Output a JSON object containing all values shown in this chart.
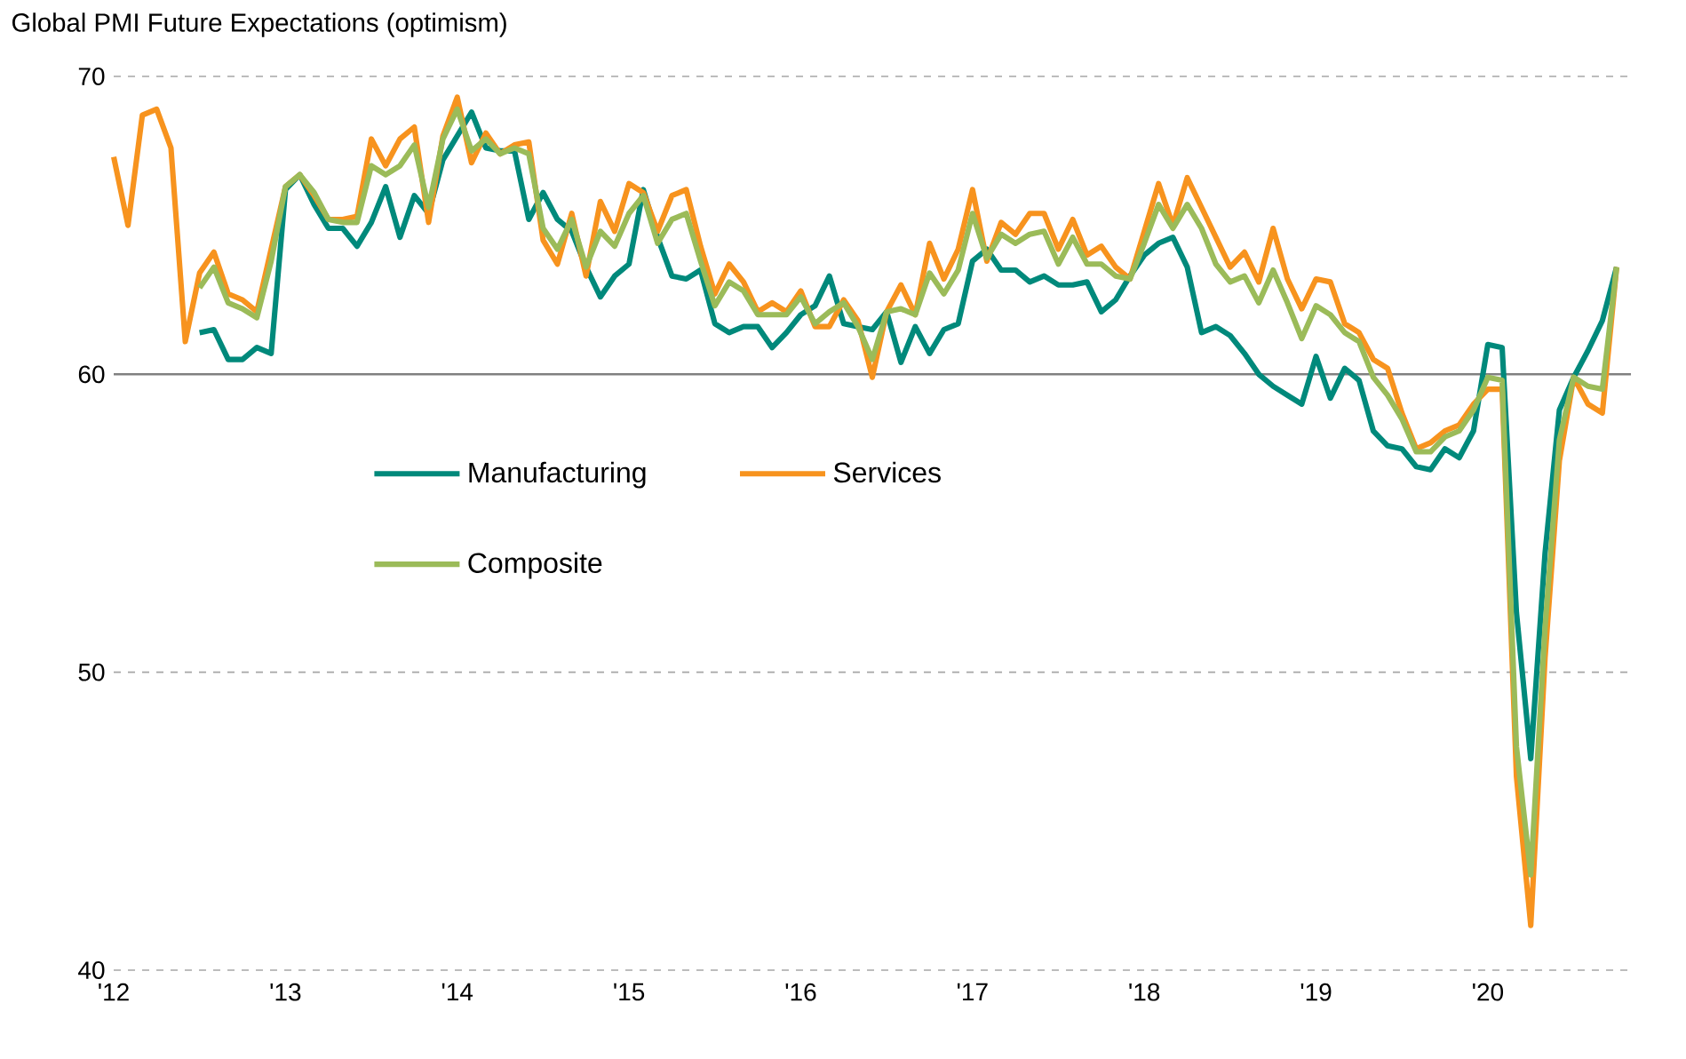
{
  "chart_data": {
    "type": "line",
    "title": "Global PMI Future Expectations (optimism)",
    "x": [
      "2012-01",
      "2012-02",
      "2012-03",
      "2012-04",
      "2012-05",
      "2012-06",
      "2012-07",
      "2012-08",
      "2012-09",
      "2012-10",
      "2012-11",
      "2012-12",
      "2013-01",
      "2013-02",
      "2013-03",
      "2013-04",
      "2013-05",
      "2013-06",
      "2013-07",
      "2013-08",
      "2013-09",
      "2013-10",
      "2013-11",
      "2013-12",
      "2014-01",
      "2014-02",
      "2014-03",
      "2014-04",
      "2014-05",
      "2014-06",
      "2014-07",
      "2014-08",
      "2014-09",
      "2014-10",
      "2014-11",
      "2014-12",
      "2015-01",
      "2015-02",
      "2015-03",
      "2015-04",
      "2015-05",
      "2015-06",
      "2015-07",
      "2015-08",
      "2015-09",
      "2015-10",
      "2015-11",
      "2015-12",
      "2016-01",
      "2016-02",
      "2016-03",
      "2016-04",
      "2016-05",
      "2016-06",
      "2016-07",
      "2016-08",
      "2016-09",
      "2016-10",
      "2016-11",
      "2016-12",
      "2017-01",
      "2017-02",
      "2017-03",
      "2017-04",
      "2017-05",
      "2017-06",
      "2017-07",
      "2017-08",
      "2017-09",
      "2017-10",
      "2017-11",
      "2017-12",
      "2018-01",
      "2018-02",
      "2018-03",
      "2018-04",
      "2018-05",
      "2018-06",
      "2018-07",
      "2018-08",
      "2018-09",
      "2018-10",
      "2018-11",
      "2018-12",
      "2019-01",
      "2019-02",
      "2019-03",
      "2019-04",
      "2019-05",
      "2019-06",
      "2019-07",
      "2019-08",
      "2019-09",
      "2019-10",
      "2019-11",
      "2019-12",
      "2020-01",
      "2020-02",
      "2020-03",
      "2020-04",
      "2020-05",
      "2020-06",
      "2020-07",
      "2020-08",
      "2020-09",
      "2020-10"
    ],
    "series": [
      {
        "name": "Manufacturing",
        "color": "#00897b",
        "values": [
          null,
          null,
          null,
          null,
          null,
          null,
          61.4,
          61.5,
          60.5,
          60.5,
          60.9,
          60.7,
          66.2,
          66.7,
          65.7,
          64.9,
          64.9,
          64.3,
          65.1,
          66.3,
          64.6,
          66.0,
          65.4,
          67.2,
          68.0,
          68.8,
          67.6,
          67.5,
          67.5,
          65.2,
          66.1,
          65.2,
          64.8,
          63.6,
          62.6,
          63.3,
          63.7,
          66.2,
          64.6,
          63.3,
          63.2,
          63.5,
          61.7,
          61.4,
          61.6,
          61.6,
          60.9,
          61.4,
          62.0,
          62.3,
          63.3,
          61.7,
          61.6,
          61.5,
          62.1,
          60.4,
          61.6,
          60.7,
          61.5,
          61.7,
          63.8,
          64.2,
          63.5,
          63.5,
          63.1,
          63.3,
          63.0,
          63.0,
          63.1,
          62.1,
          62.5,
          63.3,
          64.0,
          64.4,
          64.6,
          63.6,
          61.4,
          61.6,
          61.3,
          60.7,
          60.0,
          59.6,
          59.3,
          59.0,
          60.6,
          59.2,
          60.2,
          59.8,
          58.1,
          57.6,
          57.5,
          56.9,
          56.8,
          57.5,
          57.2,
          58.1,
          61.0,
          60.9,
          52.0,
          47.1,
          54.0,
          58.8,
          59.9,
          60.8,
          61.8,
          63.6
        ]
      },
      {
        "name": "Services",
        "color": "#f7931e",
        "values": [
          67.3,
          65.0,
          68.7,
          68.9,
          67.6,
          61.1,
          63.4,
          64.1,
          62.7,
          62.5,
          62.1,
          64.2,
          66.3,
          66.7,
          66.0,
          65.2,
          65.2,
          65.3,
          67.9,
          67.0,
          67.9,
          68.3,
          65.1,
          68.0,
          69.3,
          67.1,
          68.1,
          67.4,
          67.7,
          67.8,
          64.5,
          63.7,
          65.4,
          63.3,
          65.8,
          64.8,
          66.4,
          66.1,
          64.8,
          66.0,
          66.2,
          64.3,
          62.7,
          63.7,
          63.1,
          62.1,
          62.4,
          62.1,
          62.8,
          61.6,
          61.6,
          62.5,
          61.8,
          59.9,
          62.1,
          63.0,
          62.0,
          64.4,
          63.2,
          64.2,
          66.2,
          63.8,
          65.1,
          64.7,
          65.4,
          65.4,
          64.2,
          65.2,
          64.0,
          64.3,
          63.6,
          63.2,
          64.8,
          66.4,
          65.0,
          66.6,
          65.6,
          64.6,
          63.6,
          64.1,
          63.1,
          64.9,
          63.2,
          62.2,
          63.2,
          63.1,
          61.7,
          61.4,
          60.5,
          60.2,
          58.7,
          57.5,
          57.7,
          58.1,
          58.3,
          59.0,
          59.5,
          59.5,
          46.5,
          41.5,
          50.5,
          57.1,
          59.9,
          59.0,
          58.7,
          63.6
        ]
      },
      {
        "name": "Composite",
        "color": "#9bbb59",
        "values": [
          null,
          null,
          null,
          null,
          null,
          null,
          62.9,
          63.6,
          62.4,
          62.2,
          61.9,
          63.8,
          66.3,
          66.7,
          66.1,
          65.2,
          65.1,
          65.1,
          67.0,
          66.7,
          67.0,
          67.7,
          65.6,
          67.9,
          68.9,
          67.5,
          67.9,
          67.4,
          67.6,
          67.4,
          64.9,
          64.2,
          65.2,
          63.6,
          64.8,
          64.3,
          65.4,
          66.0,
          64.4,
          65.2,
          65.4,
          63.8,
          62.3,
          63.1,
          62.8,
          62.0,
          62.0,
          62.0,
          62.6,
          61.7,
          62.1,
          62.4,
          61.6,
          60.5,
          62.1,
          62.2,
          62.0,
          63.4,
          62.7,
          63.5,
          65.4,
          63.9,
          64.7,
          64.4,
          64.7,
          64.8,
          63.7,
          64.6,
          63.7,
          63.7,
          63.3,
          63.2,
          64.4,
          65.7,
          64.9,
          65.7,
          64.9,
          63.7,
          63.1,
          63.3,
          62.4,
          63.5,
          62.4,
          61.2,
          62.3,
          62.0,
          61.4,
          61.1,
          59.9,
          59.3,
          58.5,
          57.4,
          57.4,
          57.9,
          58.1,
          58.8,
          59.9,
          59.8,
          47.5,
          43.2,
          51.5,
          57.8,
          59.9,
          59.6,
          59.5,
          63.6
        ]
      }
    ],
    "xlim": [
      "2012-01",
      "2020-11"
    ],
    "xticks": [
      {
        "value": "2012-01",
        "label": "'12"
      },
      {
        "value": "2013-01",
        "label": "'13"
      },
      {
        "value": "2014-01",
        "label": "'14"
      },
      {
        "value": "2015-01",
        "label": "'15"
      },
      {
        "value": "2016-01",
        "label": "'16"
      },
      {
        "value": "2017-01",
        "label": "'17"
      },
      {
        "value": "2018-01",
        "label": "'18"
      },
      {
        "value": "2019-01",
        "label": "'19"
      },
      {
        "value": "2020-01",
        "label": "'20"
      }
    ],
    "ylim": [
      40,
      70
    ],
    "yticks": [
      40,
      50,
      60,
      70
    ],
    "ref_lines": [
      {
        "axis": "y",
        "value": 60,
        "color": "#808080",
        "line_style": "solid"
      }
    ],
    "grid": "y",
    "legend": "left",
    "marker": "none",
    "line_style": "solid"
  }
}
